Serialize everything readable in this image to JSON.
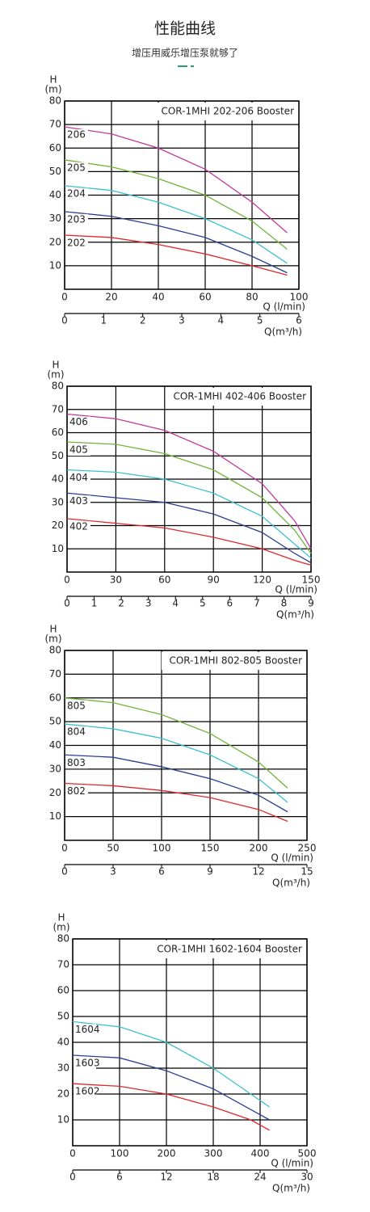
{
  "header": {
    "title": "性能曲线",
    "subtitle": "增压用威乐增压泵就够了"
  },
  "chart_data": [
    {
      "type": "line",
      "title": "COR-1MHI 202-206 Booster",
      "ylabel": "H",
      "yunit": "(m)",
      "xlabel": "Q (l/min)",
      "x2label": "Q(m³/h)",
      "x": [
        0,
        20,
        40,
        60,
        80,
        95
      ],
      "xlim": [
        0,
        100
      ],
      "xticks": [
        0,
        20,
        40,
        60,
        80,
        100
      ],
      "x2lim": [
        0,
        6
      ],
      "x2ticks": [
        0,
        1,
        2,
        3,
        4,
        5,
        6
      ],
      "ylim": [
        0,
        80
      ],
      "yticks": [
        10,
        20,
        30,
        40,
        50,
        60,
        70,
        80
      ],
      "grid": true,
      "series": [
        {
          "name": "206",
          "color": "#c0399a",
          "values": [
            69,
            66,
            60,
            51,
            37,
            24
          ]
        },
        {
          "name": "205",
          "color": "#6fb53a",
          "values": [
            55,
            52,
            47,
            40,
            29,
            17
          ]
        },
        {
          "name": "204",
          "color": "#3cc0d0",
          "values": [
            44,
            42,
            37,
            30,
            21,
            11
          ]
        },
        {
          "name": "203",
          "color": "#2a3f8f",
          "values": [
            33,
            31,
            27,
            22,
            14,
            7
          ]
        },
        {
          "name": "202",
          "color": "#e0272b",
          "values": [
            23,
            22,
            19,
            15,
            10,
            6
          ]
        }
      ]
    },
    {
      "type": "line",
      "title": "COR-1MHI 402-406 Booster",
      "ylabel": "H",
      "yunit": "(m)",
      "xlabel": "Q (l/min)",
      "x2label": "Q(m³/h)",
      "x": [
        0,
        30,
        60,
        90,
        120,
        140,
        150
      ],
      "xlim": [
        0,
        150
      ],
      "xticks": [
        0,
        30,
        60,
        90,
        120,
        150
      ],
      "x2lim": [
        0,
        9
      ],
      "x2ticks": [
        0,
        1,
        2,
        3,
        4,
        5,
        6,
        7,
        8,
        9
      ],
      "ylim": [
        0,
        80
      ],
      "yticks": [
        10,
        20,
        30,
        40,
        50,
        60,
        70,
        80
      ],
      "grid": true,
      "series": [
        {
          "name": "406",
          "color": "#c0399a",
          "values": [
            68,
            66,
            61,
            52,
            38,
            22,
            10
          ]
        },
        {
          "name": "405",
          "color": "#6fb53a",
          "values": [
            56,
            55,
            51,
            44,
            32,
            18,
            8
          ]
        },
        {
          "name": "404",
          "color": "#3cc0d0",
          "values": [
            44,
            43,
            40,
            34,
            24,
            12,
            6
          ]
        },
        {
          "name": "403",
          "color": "#2a3f8f",
          "values": [
            34,
            32,
            30,
            25,
            17,
            8,
            4
          ]
        },
        {
          "name": "402",
          "color": "#e0272b",
          "values": [
            23,
            21,
            19,
            15,
            10,
            5,
            3
          ]
        }
      ]
    },
    {
      "type": "line",
      "title": "COR-1MHI 802-805 Booster",
      "ylabel": "H",
      "yunit": "(m)",
      "xlabel": "Q (l/min)",
      "x2label": "Q(m³/h)",
      "x": [
        0,
        50,
        100,
        150,
        200,
        230
      ],
      "xlim": [
        0,
        250
      ],
      "xticks": [
        0,
        50,
        100,
        150,
        200,
        250
      ],
      "x2lim": [
        0,
        15
      ],
      "x2ticks": [
        0,
        3,
        6,
        9,
        12,
        15
      ],
      "ylim": [
        0,
        80
      ],
      "yticks": [
        10,
        20,
        30,
        40,
        50,
        60,
        70,
        80
      ],
      "grid": true,
      "series": [
        {
          "name": "805",
          "color": "#6fb53a",
          "values": [
            60,
            58,
            53,
            45,
            33,
            22
          ]
        },
        {
          "name": "804",
          "color": "#3cc0d0",
          "values": [
            49,
            47,
            43,
            36,
            26,
            16
          ]
        },
        {
          "name": "803",
          "color": "#2a3f8f",
          "values": [
            36,
            35,
            31,
            26,
            19,
            12
          ]
        },
        {
          "name": "802",
          "color": "#e0272b",
          "values": [
            24,
            23,
            21,
            18,
            13,
            8
          ]
        }
      ]
    },
    {
      "type": "line",
      "title": "COR-1MHI 1602-1604 Booster",
      "ylabel": "H",
      "yunit": "(m)",
      "xlabel": "Q (l/min)",
      "x2label": "Q(m³/h)",
      "x": [
        0,
        100,
        200,
        300,
        380,
        420
      ],
      "xlim": [
        0,
        500
      ],
      "xticks": [
        0,
        100,
        200,
        300,
        400,
        500
      ],
      "x2lim": [
        0,
        30
      ],
      "x2ticks": [
        0,
        6,
        12,
        18,
        24,
        30
      ],
      "ylim": [
        0,
        80
      ],
      "yticks": [
        10,
        20,
        30,
        40,
        50,
        60,
        70,
        80
      ],
      "grid": true,
      "series": [
        {
          "name": "1604",
          "color": "#3cc0d0",
          "values": [
            48,
            46,
            40,
            30,
            20,
            15
          ]
        },
        {
          "name": "1603",
          "color": "#2a3f8f",
          "values": [
            35,
            34,
            29,
            22,
            14,
            10
          ]
        },
        {
          "name": "1602",
          "color": "#e0272b",
          "values": [
            24,
            23,
            20,
            15,
            10,
            6
          ]
        }
      ]
    }
  ]
}
